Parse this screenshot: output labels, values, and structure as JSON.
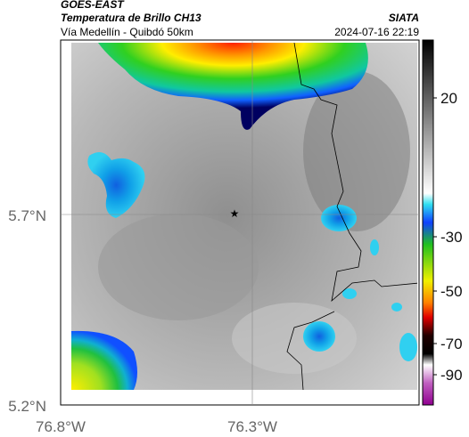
{
  "header": {
    "source": "GOES-EAST",
    "product": "Temperatura de Brillo CH13",
    "route": "Vía Medellín - Quibdó 50km",
    "agency": "SIATA",
    "timestamp": "2024-07-16 22:19"
  },
  "axes": {
    "y_labels": [
      "5.7°N",
      "5.2°N"
    ],
    "x_labels": [
      "76.8°W",
      "76.3°W"
    ]
  },
  "colorbar": {
    "ticks": [
      20,
      -30,
      -50,
      -70,
      -90
    ]
  }
}
